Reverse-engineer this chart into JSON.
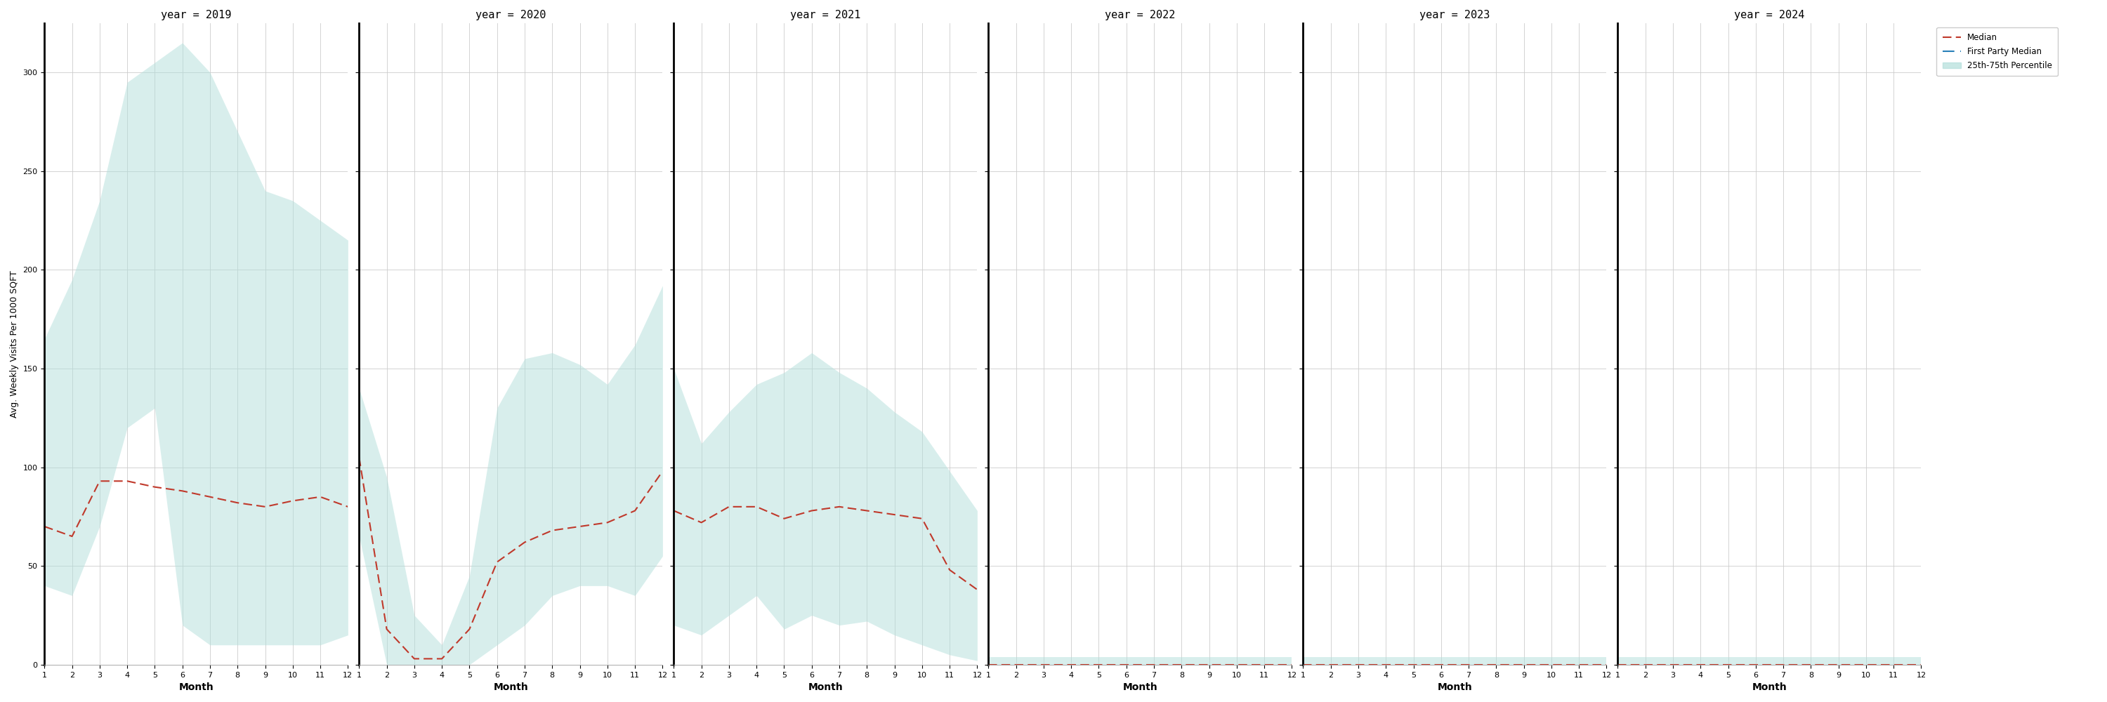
{
  "years": [
    2019,
    2020,
    2021,
    2022,
    2023,
    2024
  ],
  "months": [
    1,
    2,
    3,
    4,
    5,
    6,
    7,
    8,
    9,
    10,
    11,
    12
  ],
  "median": {
    "2019": [
      70,
      65,
      93,
      93,
      90,
      88,
      85,
      82,
      80,
      83,
      85,
      80
    ],
    "2020": [
      105,
      18,
      3,
      3,
      18,
      52,
      62,
      68,
      70,
      72,
      78,
      98
    ],
    "2021": [
      78,
      72,
      80,
      80,
      74,
      78,
      80,
      78,
      76,
      74,
      48,
      38
    ],
    "2022": [
      0,
      0,
      0,
      0,
      0,
      0,
      0,
      0,
      0,
      0,
      0,
      0
    ],
    "2023": [
      0,
      0,
      0,
      0,
      0,
      0,
      0,
      0,
      0,
      0,
      0,
      0
    ],
    "2024": [
      0,
      0,
      0,
      0,
      0,
      0,
      0,
      0,
      0,
      0,
      0,
      0
    ]
  },
  "p25": {
    "2019": [
      40,
      35,
      70,
      120,
      130,
      20,
      10,
      10,
      10,
      10,
      10,
      15
    ],
    "2020": [
      65,
      0,
      0,
      0,
      0,
      10,
      20,
      35,
      40,
      40,
      35,
      55
    ],
    "2021": [
      20,
      15,
      25,
      35,
      18,
      25,
      20,
      22,
      15,
      10,
      5,
      2
    ],
    "2022": [
      0,
      0,
      0,
      0,
      0,
      0,
      0,
      0,
      0,
      0,
      0,
      0
    ],
    "2023": [
      0,
      0,
      0,
      0,
      0,
      0,
      0,
      0,
      0,
      0,
      0,
      0
    ],
    "2024": [
      0,
      0,
      0,
      0,
      0,
      0,
      0,
      0,
      0,
      0,
      0,
      0
    ]
  },
  "p75": {
    "2019": [
      165,
      195,
      235,
      295,
      305,
      315,
      300,
      270,
      240,
      235,
      225,
      215
    ],
    "2020": [
      140,
      95,
      25,
      10,
      45,
      130,
      155,
      158,
      152,
      142,
      162,
      192
    ],
    "2021": [
      150,
      112,
      128,
      142,
      148,
      158,
      148,
      140,
      128,
      118,
      98,
      78
    ],
    "2022": [
      4,
      4,
      4,
      4,
      4,
      4,
      4,
      4,
      4,
      4,
      4,
      4
    ],
    "2023": [
      4,
      4,
      4,
      4,
      4,
      4,
      4,
      4,
      4,
      4,
      4,
      4
    ],
    "2024": [
      4,
      4,
      4,
      4,
      4,
      4,
      4,
      4,
      4,
      4,
      4,
      4
    ]
  },
  "ylim": [
    0,
    325
  ],
  "yticks": [
    0,
    50,
    100,
    150,
    200,
    250,
    300
  ],
  "fill_color": "#b2dfdb",
  "fill_alpha": 0.5,
  "median_color": "#c0392b",
  "first_party_color": "#2980b9",
  "ylabel": "Avg. Weekly Visits Per 1000 SQFT",
  "xlabel": "Month",
  "title_fontsize": 11,
  "axis_fontsize": 9,
  "tick_fontsize": 8,
  "background_color": "#ffffff"
}
